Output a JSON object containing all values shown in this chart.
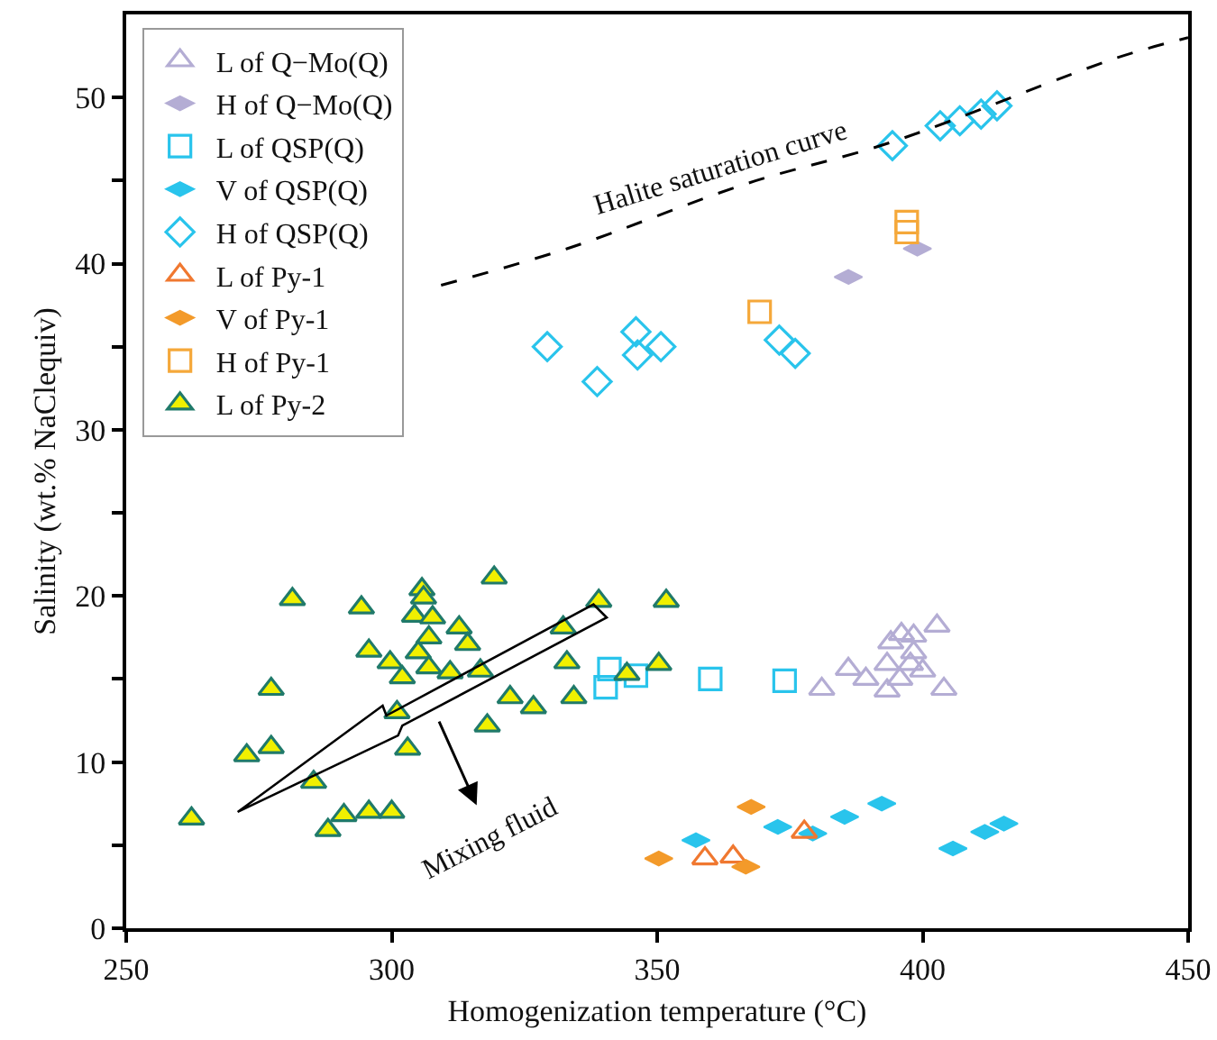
{
  "chart_data": {
    "type": "scatter",
    "xlabel": "Homogenization temperature (°C)",
    "ylabel": "Salinity (wt.% NaClequiv)",
    "xlim": [
      250,
      450
    ],
    "xticks": [
      250,
      300,
      350,
      400,
      450
    ],
    "ylim": [
      0,
      55
    ],
    "yticks": [
      0,
      {
        "value": 5,
        "label": null
      },
      10,
      {
        "value": 15,
        "label": null
      },
      20,
      {
        "value": 25,
        "label": null
      },
      30,
      {
        "value": 35,
        "label": null
      },
      40,
      {
        "value": 45,
        "label": null
      },
      50
    ],
    "grid": false,
    "legend": "top left",
    "annotations": [
      "Halite saturation curve",
      "Mixing fluid"
    ],
    "series": [
      {
        "name": "L of Q−Mo(Q)",
        "color": "#b4add4",
        "marker": "triangle-open",
        "x": [
          381,
          386,
          389.3,
          393.3,
          393.3,
          394,
          396,
          398.3,
          398.3,
          395.7,
          400,
          397.7,
          402.7,
          404
        ],
        "values": [
          14.4,
          15.6,
          15.0,
          14.3,
          15.9,
          17.2,
          17.7,
          17.6,
          16.6,
          15.0,
          15.5,
          15.9,
          18.2,
          14.4
        ]
      },
      {
        "name": "H of Q−Mo(Q)",
        "color": "#b4add4",
        "x": [
          386,
          399
        ],
        "values": [
          39.2,
          40.9
        ]
      },
      {
        "name": "L of QSP(Q)",
        "color": "#29c4ec",
        "marker": "square-open",
        "x": [
          341,
          340.3,
          346,
          360,
          374
        ],
        "values": [
          15.6,
          14.5,
          15.2,
          15.0,
          14.9
        ]
      },
      {
        "name": "V of QSP(Q)",
        "color": "#29c4ec",
        "x": [
          357.3,
          372.7,
          379.3,
          385.3,
          392.3,
          405.7,
          411.7,
          415.3
        ],
        "values": [
          5.3,
          6.1,
          5.7,
          6.7,
          7.5,
          4.8,
          5.8,
          6.3
        ]
      },
      {
        "name": "H of QSP(Q)",
        "color": "#29c4ec",
        "marker": "diamond-open",
        "x": [
          394.3,
          403.3,
          407,
          411,
          414,
          338.7,
          346,
          346.3,
          350.7,
          373,
          376,
          329.3
        ],
        "values": [
          47.1,
          48.3,
          48.6,
          49.0,
          49.5,
          32.9,
          35.9,
          34.5,
          35.0,
          35.4,
          34.6,
          35.0
        ]
      },
      {
        "name": "L of Py-1",
        "color": "#f07830",
        "marker": "triangle-open",
        "x": [
          359,
          364.3,
          377.7
        ],
        "values": [
          4.2,
          4.3,
          5.8
        ]
      },
      {
        "name": "V of Py-1",
        "color": "#f39a2a",
        "x": [
          350.3,
          367.7,
          366.7
        ],
        "values": [
          4.2,
          7.3,
          3.7
        ]
      },
      {
        "name": "H of Py-1",
        "color": "#f5a83a",
        "marker": "square-open",
        "x": [
          369.3,
          397,
          397
        ],
        "values": [
          37.1,
          42.5,
          41.9
        ]
      },
      {
        "name": "L of Py-2",
        "color": "#f0f000",
        "marker": "triangle",
        "x": [
          281.3,
          294.3,
          305.7,
          306,
          319.3,
          304.3,
          307.7,
          312.7,
          314.3,
          307,
          295.7,
          305,
          299.7,
          302,
          307,
          311,
          316.7,
          332.3,
          339,
          351.7,
          333,
          277.3,
          322.3,
          326.7,
          334.3,
          344.3,
          350.3,
          301,
          318,
          303,
          277.3,
          272.7,
          285.3,
          262.3,
          291,
          295.7,
          300,
          288
        ],
        "values": [
          19.8,
          19.3,
          20.4,
          19.9,
          21.1,
          18.8,
          18.7,
          18.1,
          17.1,
          17.5,
          16.7,
          16.6,
          16.0,
          15.1,
          15.7,
          15.4,
          15.5,
          18.1,
          19.7,
          19.7,
          16.0,
          14.4,
          13.9,
          13.3,
          13.9,
          15.3,
          15.9,
          13.0,
          12.2,
          10.8,
          10.9,
          10.4,
          8.8,
          6.6,
          6.8,
          7.0,
          7.0,
          5.9
        ]
      },
      {
        "type": "line",
        "color": "#000000",
        "marker": "none",
        "line_style": "dashed",
        "x": [
          309.3,
          333,
          366.7,
          394,
          436.7,
          450
        ],
        "values": [
          38.7,
          40.9,
          44.8,
          47.3,
          52.4,
          53.6
        ]
      }
    ]
  }
}
